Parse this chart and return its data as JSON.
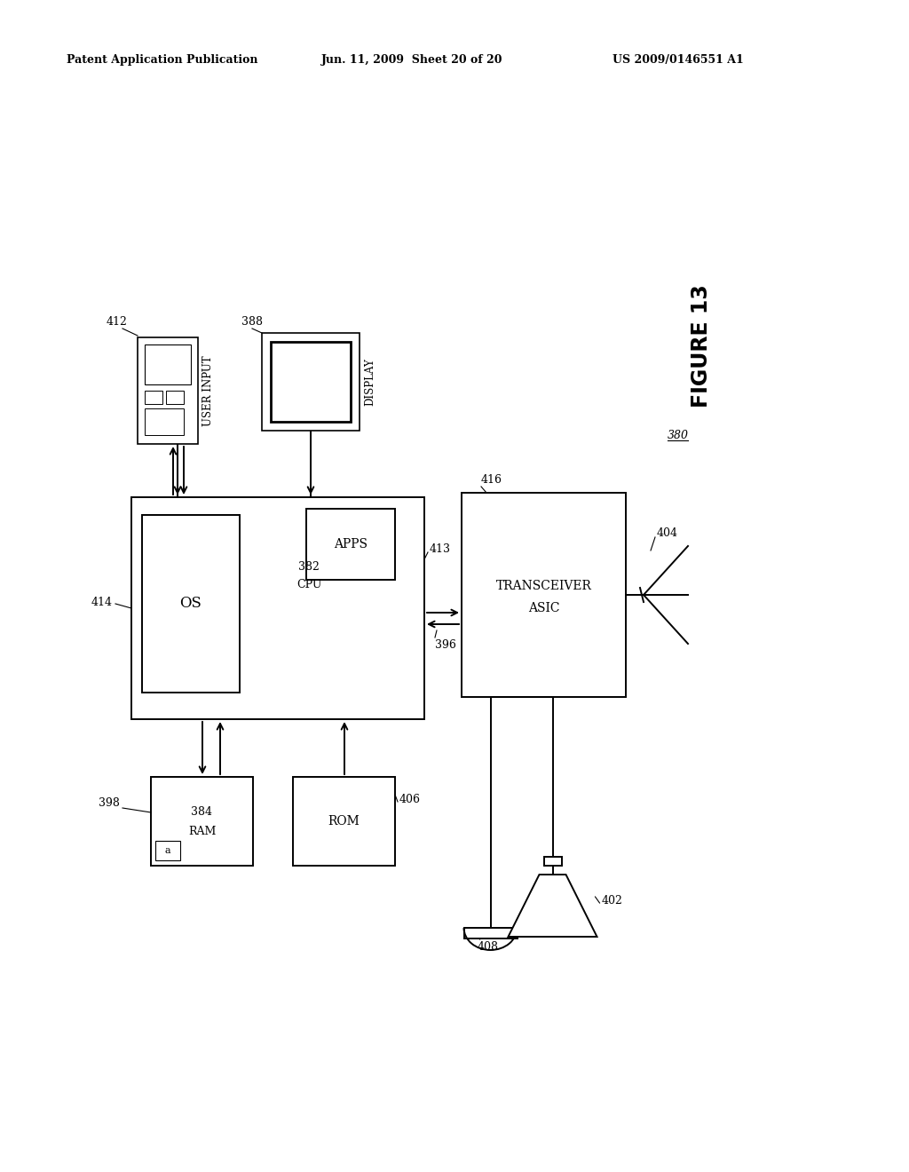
{
  "header_left": "Patent Application Publication",
  "header_mid": "Jun. 11, 2009  Sheet 20 of 20",
  "header_right": "US 2009/0146551 A1",
  "figure_label": "FIGURE 13",
  "bg_color": "#ffffff"
}
